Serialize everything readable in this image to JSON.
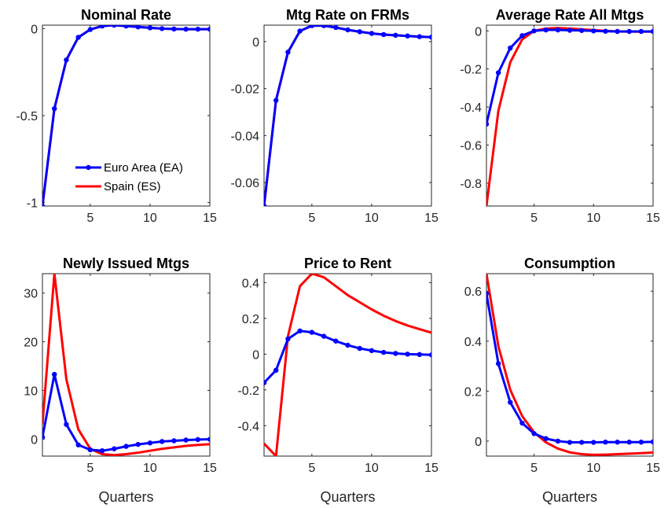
{
  "colors": {
    "ea": "#0000ff",
    "es": "#ff0000",
    "axis": "#262626"
  },
  "legend": {
    "ea_label": "Euro Area (EA)",
    "es_label": "Spain (ES)",
    "location": "lower-right of first panel"
  },
  "chart_data": [
    {
      "type": "line",
      "title": "Nominal Rate",
      "xlabel": "",
      "xlim": [
        1,
        15
      ],
      "ylim": [
        -1.02,
        0.02
      ],
      "xticks": [
        5,
        10,
        15
      ],
      "yticks": [
        -1,
        -0.5,
        0
      ],
      "ytick_labels": [
        "-1",
        "-0.5",
        "0"
      ],
      "show_legend": true,
      "x": [
        1,
        2,
        3,
        4,
        5,
        6,
        7,
        8,
        9,
        10,
        11,
        12,
        13,
        14,
        15
      ],
      "series": [
        {
          "name": "Euro Area (EA)",
          "values": [
            -1.02,
            -0.46,
            -0.18,
            -0.05,
            -0.005,
            0.015,
            0.02,
            0.015,
            0.01,
            0.005,
            0.0,
            -0.002,
            -0.003,
            -0.003,
            -0.003
          ],
          "markers": true
        },
        {
          "name": "Spain (ES)",
          "values": [
            -1.02,
            -0.46,
            -0.18,
            -0.05,
            -0.005,
            0.015,
            0.02,
            0.015,
            0.01,
            0.005,
            0.0,
            -0.002,
            -0.003,
            -0.003,
            -0.003
          ],
          "markers": false
        }
      ]
    },
    {
      "type": "line",
      "title": "Mtg Rate on FRMs",
      "xlabel": "",
      "xlim": [
        1,
        15
      ],
      "ylim": [
        -0.07,
        0.007
      ],
      "xticks": [
        5,
        10,
        15
      ],
      "yticks": [
        -0.06,
        -0.04,
        -0.02,
        0
      ],
      "ytick_labels": [
        "-0.06",
        "-0.04",
        "-0.02",
        "0"
      ],
      "show_legend": false,
      "x": [
        1,
        2,
        3,
        4,
        5,
        6,
        7,
        8,
        9,
        10,
        11,
        12,
        13,
        14,
        15
      ],
      "series": [
        {
          "name": "Euro Area (EA)",
          "values": [
            -0.07,
            -0.025,
            -0.0045,
            0.0045,
            0.0068,
            0.0068,
            0.006,
            0.005,
            0.0042,
            0.0035,
            0.003,
            0.0027,
            0.0024,
            0.0021,
            0.0019
          ],
          "markers": true
        },
        {
          "name": "Spain (ES)",
          "values": [
            -0.07,
            -0.025,
            -0.0045,
            0.0045,
            0.0068,
            0.0068,
            0.006,
            0.005,
            0.0042,
            0.0035,
            0.003,
            0.0027,
            0.0024,
            0.0021,
            0.0019
          ],
          "markers": false
        }
      ]
    },
    {
      "type": "line",
      "title": "Average Rate All Mtgs",
      "xlabel": "",
      "xlim": [
        1,
        15
      ],
      "ylim": [
        -0.92,
        0.03
      ],
      "xticks": [
        5,
        10,
        15
      ],
      "yticks": [
        -0.8,
        -0.6,
        -0.4,
        -0.2,
        0
      ],
      "ytick_labels": [
        "-0.8",
        "-0.6",
        "-0.4",
        "-0.2",
        "0"
      ],
      "show_legend": false,
      "x": [
        1,
        2,
        3,
        4,
        5,
        6,
        7,
        8,
        9,
        10,
        11,
        12,
        13,
        14,
        15
      ],
      "series": [
        {
          "name": "Euro Area (EA)",
          "values": [
            -0.49,
            -0.22,
            -0.09,
            -0.025,
            0.0,
            0.005,
            0.005,
            0.003,
            0.002,
            0.0,
            -0.002,
            -0.003,
            -0.003,
            -0.003,
            -0.003
          ],
          "markers": true
        },
        {
          "name": "Spain (ES)",
          "values": [
            -0.92,
            -0.42,
            -0.165,
            -0.045,
            0.0,
            0.012,
            0.015,
            0.012,
            0.008,
            0.004,
            0.0,
            -0.003,
            -0.004,
            -0.004,
            -0.004
          ],
          "markers": false
        }
      ]
    },
    {
      "type": "line",
      "title": "Newly Issued Mtgs",
      "xlabel": "Quarters",
      "xlim": [
        1,
        15
      ],
      "ylim": [
        -3.5,
        34
      ],
      "xticks": [
        5,
        10,
        15
      ],
      "yticks": [
        0,
        10,
        20,
        30
      ],
      "ytick_labels": [
        "0",
        "10",
        "20",
        "30"
      ],
      "show_legend": false,
      "x": [
        1,
        2,
        3,
        4,
        5,
        6,
        7,
        8,
        9,
        10,
        11,
        12,
        13,
        14,
        15
      ],
      "series": [
        {
          "name": "Euro Area (EA)",
          "values": [
            0.4,
            13.3,
            3.0,
            -1.2,
            -2.2,
            -2.4,
            -2.0,
            -1.5,
            -1.1,
            -0.8,
            -0.5,
            -0.35,
            -0.2,
            -0.1,
            -0.05
          ],
          "markers": true
        },
        {
          "name": "Spain (ES)",
          "values": [
            3.0,
            34.0,
            12.3,
            2.0,
            -2.0,
            -3.1,
            -3.3,
            -3.1,
            -2.8,
            -2.4,
            -2.0,
            -1.7,
            -1.4,
            -1.2,
            -1.05
          ],
          "markers": false
        }
      ]
    },
    {
      "type": "line",
      "title": "Price to Rent",
      "xlabel": "Quarters",
      "xlim": [
        1,
        15
      ],
      "ylim": [
        -0.57,
        0.45
      ],
      "xticks": [
        5,
        10,
        15
      ],
      "yticks": [
        -0.4,
        -0.2,
        0,
        0.2,
        0.4
      ],
      "ytick_labels": [
        "-0.4",
        "-0.2",
        "0",
        "0.2",
        "0.4"
      ],
      "show_legend": false,
      "x": [
        1,
        2,
        3,
        4,
        5,
        6,
        7,
        8,
        9,
        10,
        11,
        12,
        13,
        14,
        15
      ],
      "series": [
        {
          "name": "Euro Area (EA)",
          "values": [
            -0.16,
            -0.09,
            0.085,
            0.13,
            0.122,
            0.1,
            0.073,
            0.05,
            0.032,
            0.02,
            0.01,
            0.004,
            0.0,
            -0.002,
            -0.004
          ],
          "markers": true
        },
        {
          "name": "Spain (ES)",
          "values": [
            -0.5,
            -0.57,
            0.1,
            0.38,
            0.45,
            0.43,
            0.38,
            0.33,
            0.29,
            0.25,
            0.215,
            0.185,
            0.16,
            0.14,
            0.12
          ],
          "markers": false
        }
      ]
    },
    {
      "type": "line",
      "title": "Consumption",
      "xlabel": "Quarters",
      "xlim": [
        1,
        15
      ],
      "ylim": [
        -0.06,
        0.67
      ],
      "xticks": [
        5,
        10,
        15
      ],
      "yticks": [
        0,
        0.2,
        0.4,
        0.6
      ],
      "ytick_labels": [
        "0",
        "0.2",
        "0.4",
        "0.6"
      ],
      "show_legend": false,
      "x": [
        1,
        2,
        3,
        4,
        5,
        6,
        7,
        8,
        9,
        10,
        11,
        12,
        13,
        14,
        15
      ],
      "series": [
        {
          "name": "Euro Area (EA)",
          "values": [
            0.59,
            0.31,
            0.155,
            0.072,
            0.03,
            0.01,
            0.0,
            -0.005,
            -0.005,
            -0.005,
            -0.004,
            -0.004,
            -0.004,
            -0.004,
            -0.003
          ],
          "markers": true
        },
        {
          "name": "Spain (ES)",
          "values": [
            0.67,
            0.38,
            0.205,
            0.1,
            0.035,
            -0.005,
            -0.03,
            -0.045,
            -0.052,
            -0.055,
            -0.054,
            -0.052,
            -0.05,
            -0.048,
            -0.046
          ],
          "markers": false
        }
      ]
    }
  ]
}
